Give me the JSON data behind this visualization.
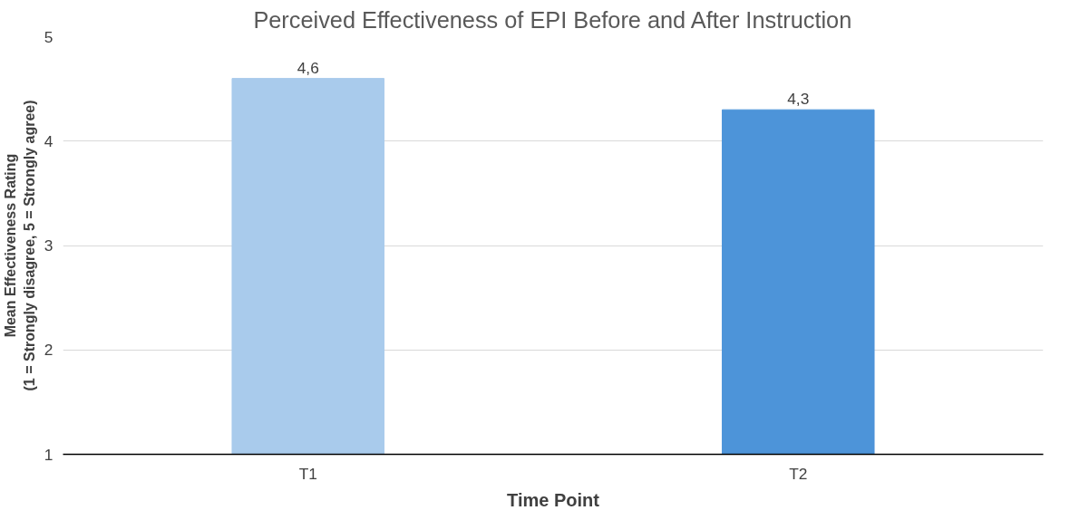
{
  "chart_data": {
    "type": "bar",
    "title": "Perceived Effectiveness of EPI Before and After Instruction",
    "xlabel": "Time Point",
    "ylabel": "Mean Effectiveness Rating\n(1 = Strongly disagree, 5 = Strongly agree)",
    "categories": [
      "T1",
      "T2"
    ],
    "values": [
      4.6,
      4.3
    ],
    "colors": [
      "#a9cbec",
      "#4d94d9"
    ],
    "value_labels": [
      "4,6",
      "4,3"
    ],
    "ylim": [
      1,
      5
    ],
    "yticks": [
      1,
      2,
      3,
      4,
      5
    ],
    "grid": "y"
  }
}
